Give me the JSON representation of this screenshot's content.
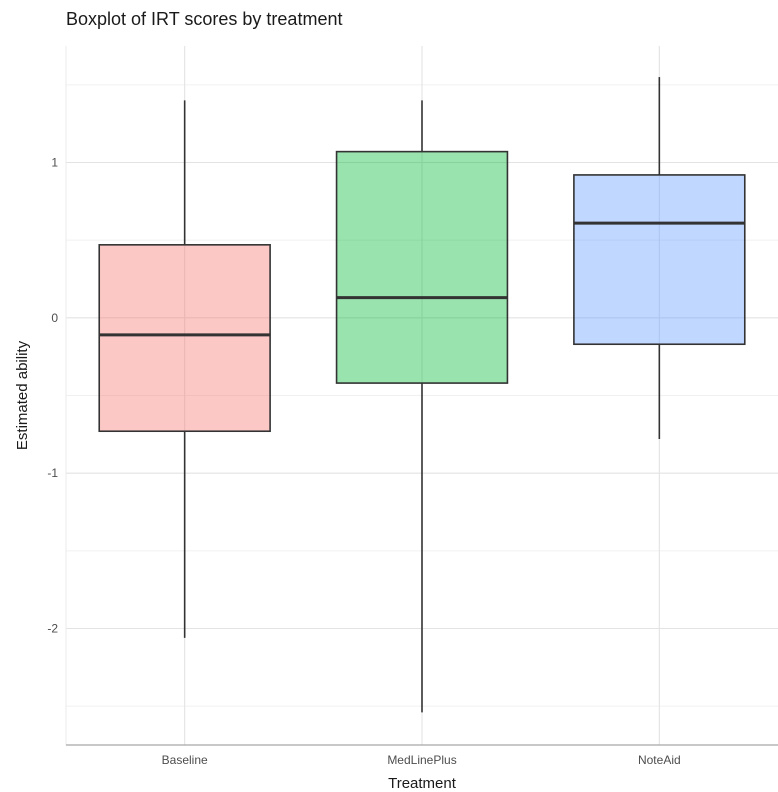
{
  "chart_data": {
    "type": "boxplot",
    "title": "Boxplot of IRT scores by treatment",
    "xlabel": "Treatment",
    "ylabel": "Estimated ability",
    "ylim": [
      -2.75,
      1.75
    ],
    "yticks": [
      -2,
      -1,
      0,
      1
    ],
    "grid": true,
    "legend": "none",
    "categories": [
      "Baseline",
      "MedLinePlus",
      "NoteAid"
    ],
    "boxes": [
      {
        "category": "Baseline",
        "whisker_low": -2.06,
        "q1": -0.73,
        "median": -0.11,
        "q3": 0.47,
        "whisker_high": 1.4,
        "color": "#F8766D"
      },
      {
        "category": "MedLinePlus",
        "whisker_low": -2.54,
        "q1": -0.42,
        "median": 0.13,
        "q3": 1.07,
        "whisker_high": 1.4,
        "color": "#00BA38"
      },
      {
        "category": "NoteAid",
        "whisker_low": -0.78,
        "q1": -0.17,
        "median": 0.61,
        "q3": 0.92,
        "whisker_high": 1.55,
        "color": "#619CFF"
      }
    ]
  }
}
